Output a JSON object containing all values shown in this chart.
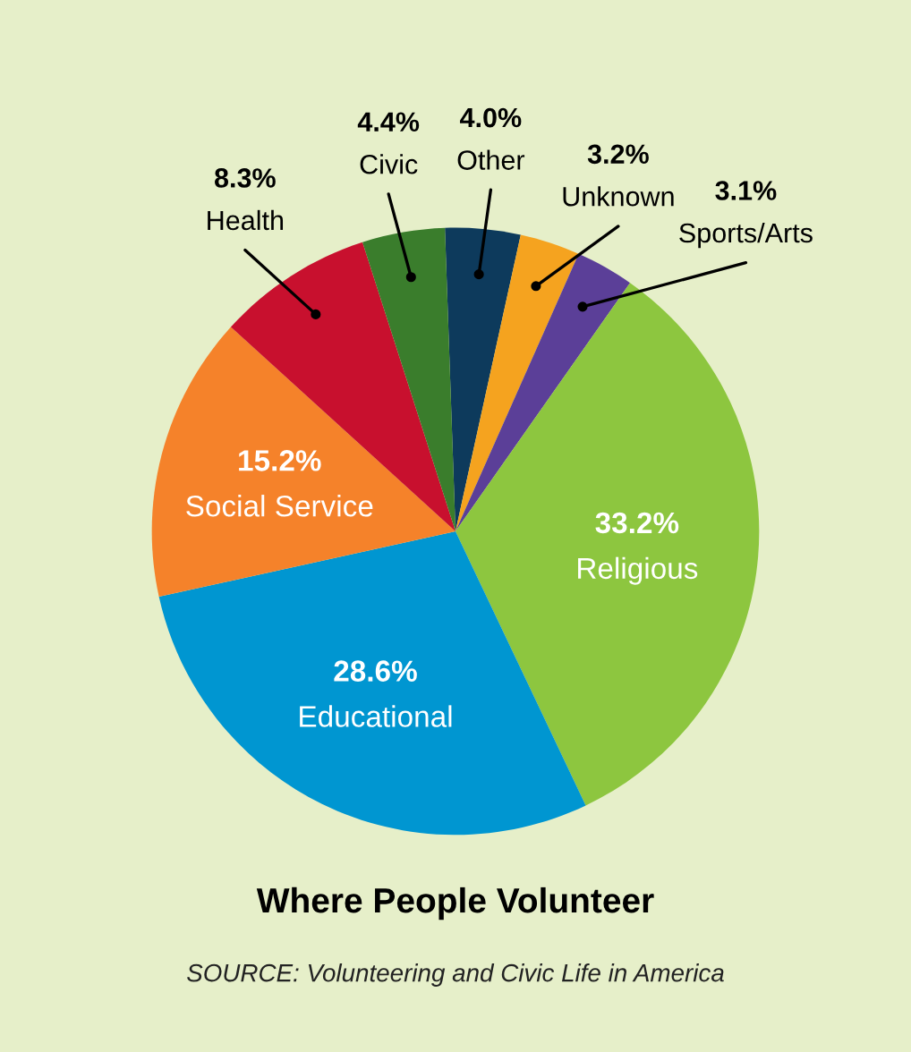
{
  "chart_data": {
    "type": "pie",
    "title": "Where People Volunteer",
    "categories": [
      "Other",
      "Unknown",
      "Sports/Arts",
      "Religious",
      "Educational",
      "Social Service",
      "Health",
      "Civic"
    ],
    "values": [
      4.0,
      3.2,
      3.1,
      33.2,
      28.6,
      15.2,
      8.3,
      4.4
    ],
    "colors": [
      "#0d3a5c",
      "#f5a31f",
      "#5b3f98",
      "#8dc63f",
      "#0096d1",
      "#f5822a",
      "#c8102e",
      "#3a7d2c"
    ],
    "data_labels": true,
    "value_labels": [
      "4.0%",
      "3.2%",
      "3.1%",
      "33.2%",
      "28.6%",
      "15.2%",
      "8.3%",
      "4.4%"
    ],
    "annotations": [
      "SOURCE: Volunteering and Civic Life in America"
    ]
  }
}
